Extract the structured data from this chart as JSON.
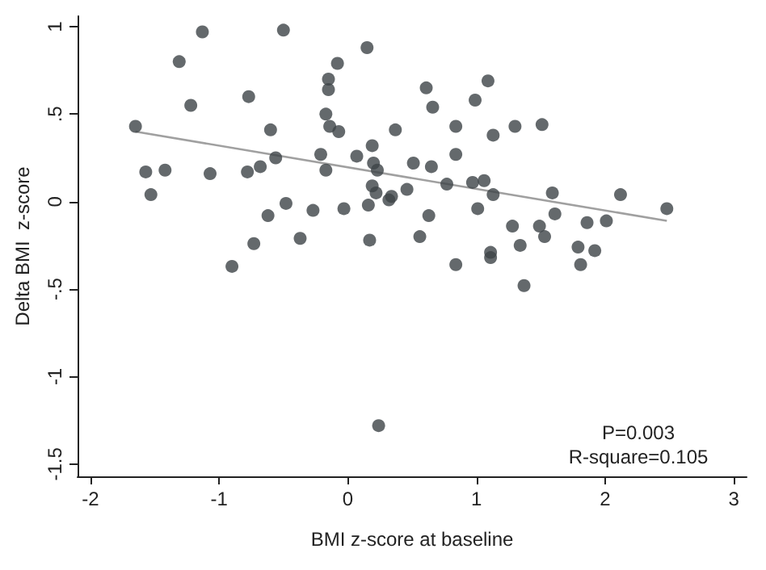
{
  "chart_data": {
    "type": "scatter",
    "xlabel": "BMI z-score at baseline",
    "ylabel": "Delta BMI  z-score",
    "annotations": [
      "P=0.003",
      "R-square=0.105"
    ],
    "xlim": [
      -2.1,
      3.1
    ],
    "xticks": [
      -2,
      -1,
      0,
      1,
      2,
      3
    ],
    "ylim": [
      -1.57,
      1.06
    ],
    "yticks": [
      {
        "value": -1.5,
        "label": "-1.5"
      },
      {
        "value": -1,
        "label": "-1"
      },
      {
        "value": -0.5,
        "label": "-.5"
      },
      {
        "value": 0,
        "label": "0"
      },
      {
        "value": 0.5,
        "label": ".5"
      },
      {
        "value": 1,
        "label": "1"
      }
    ],
    "grid": false,
    "marker": "circle",
    "series": [
      {
        "color": "#3d4447",
        "x": [
          -1.65,
          -1.57,
          -1.53,
          -1.42,
          -1.31,
          -1.22,
          -1.13,
          -1.07,
          -0.9,
          -0.78,
          -0.77,
          -0.73,
          -0.68,
          -0.62,
          -0.6,
          -0.56,
          -0.5,
          -0.48,
          -0.37,
          -0.27,
          -0.21,
          -0.17,
          -0.17,
          -0.15,
          -0.15,
          -0.14,
          -0.08,
          -0.07,
          -0.03,
          0.07,
          0.15,
          0.16,
          0.17,
          0.19,
          0.2,
          0.23,
          0.19,
          0.22,
          0.32,
          0.34,
          0.37,
          0.46,
          0.51,
          0.56,
          0.24,
          0.61,
          0.63,
          0.65,
          0.66,
          0.77,
          0.84,
          0.84,
          0.84,
          0.97,
          0.99,
          1.01,
          1.06,
          1.09,
          1.11,
          1.11,
          1.13,
          1.13,
          1.28,
          1.3,
          1.34,
          1.37,
          1.49,
          1.51,
          1.53,
          1.59,
          1.61,
          1.79,
          1.81,
          1.86,
          1.92,
          2.01,
          2.12,
          2.48
        ],
        "values": [
          0.43,
          0.17,
          0.04,
          0.18,
          0.8,
          0.55,
          0.97,
          0.16,
          -0.37,
          0.17,
          0.6,
          -0.24,
          0.2,
          -0.08,
          0.41,
          0.25,
          0.98,
          -0.01,
          -0.21,
          -0.05,
          0.27,
          0.5,
          0.18,
          0.7,
          0.64,
          0.43,
          0.79,
          0.4,
          -0.04,
          0.26,
          0.88,
          -0.02,
          -0.22,
          0.32,
          0.22,
          0.18,
          0.09,
          0.05,
          0.01,
          0.03,
          0.41,
          0.07,
          0.22,
          -0.2,
          -1.28,
          0.65,
          -0.08,
          0.2,
          0.54,
          0.1,
          0.43,
          0.27,
          -0.36,
          0.11,
          0.58,
          -0.04,
          0.12,
          0.69,
          -0.29,
          -0.32,
          0.04,
          0.38,
          -0.14,
          0.43,
          -0.25,
          -0.48,
          -0.14,
          0.44,
          -0.2,
          0.05,
          -0.07,
          -0.26,
          -0.36,
          -0.12,
          -0.28,
          -0.11,
          0.04,
          -0.04
        ]
      },
      {
        "type": "line",
        "color": "#a0a0a0",
        "marker": "none",
        "x": [
          -1.65,
          2.48
        ],
        "values": [
          0.4,
          -0.11
        ]
      }
    ]
  }
}
